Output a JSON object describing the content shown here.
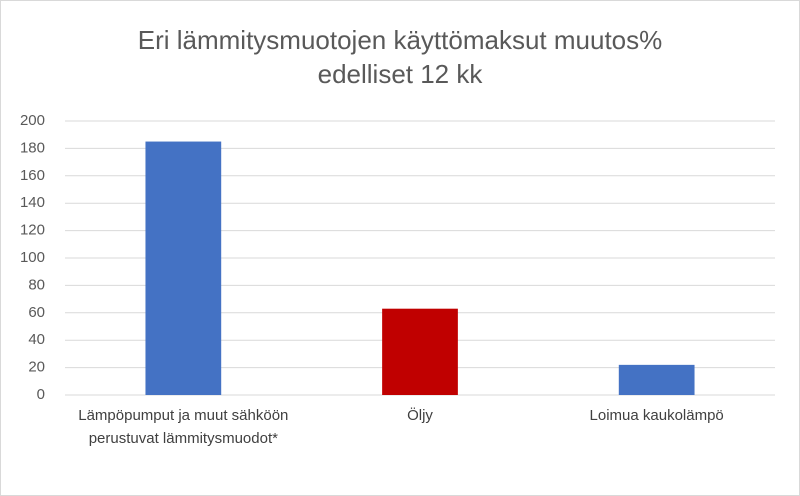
{
  "chart_data": {
    "type": "bar",
    "title": [
      "Eri lämmitysmuotojen käyttömaksut muutos%",
      "edelliset 12 kk"
    ],
    "categories": [
      "Lämpöpumput ja muut sähköön perustuvat lämmitysmuodot*",
      "Öljy",
      "Loimua kaukolämpö"
    ],
    "values": [
      185,
      63,
      22
    ],
    "colors": [
      "#4472c4",
      "#c00000",
      "#4472c4"
    ],
    "ylim": [
      0,
      200
    ],
    "yticks": [
      0,
      20,
      40,
      60,
      80,
      100,
      120,
      140,
      160,
      180,
      200
    ],
    "grid": true
  }
}
